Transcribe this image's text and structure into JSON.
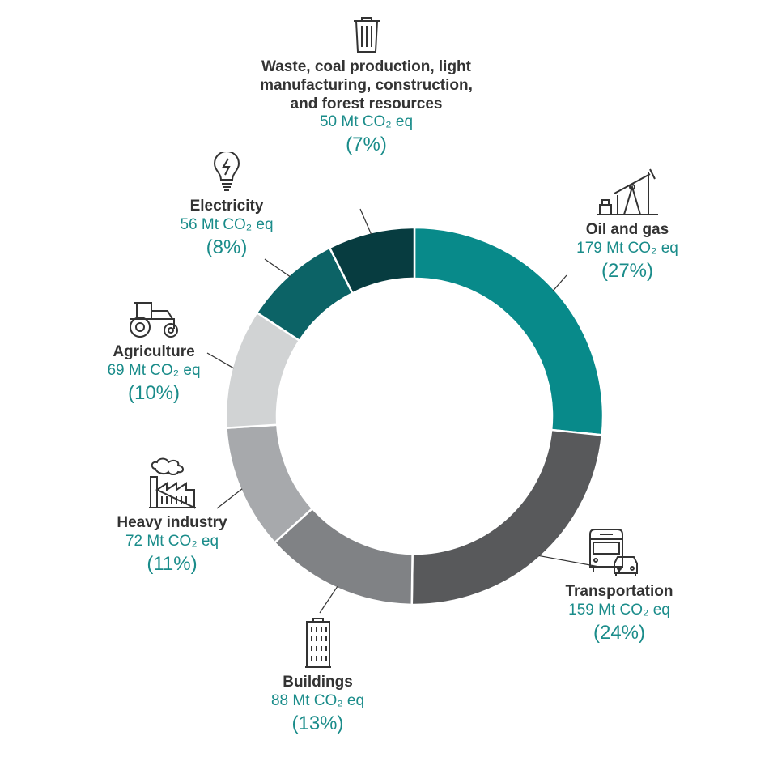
{
  "chart_data": {
    "type": "donut",
    "unit": "Mt CO₂ eq",
    "slices": [
      {
        "label": "Oil and gas",
        "value": 179,
        "value_text": "179 Mt CO₂ eq",
        "percent": 27,
        "percent_text": "(27%)",
        "color": "#088a8a",
        "icon": "oil-pump-icon"
      },
      {
        "label": "Transportation",
        "value": 159,
        "value_text": "159 Mt CO₂ eq",
        "percent": 24,
        "percent_text": "(24%)",
        "color": "#58595b",
        "icon": "bus-car-icon"
      },
      {
        "label": "Buildings",
        "value": 88,
        "value_text": "88 Mt CO₂ eq",
        "percent": 13,
        "percent_text": "(13%)",
        "color": "#808285",
        "icon": "building-icon"
      },
      {
        "label": "Heavy industry",
        "value": 72,
        "value_text": "72 Mt CO₂ eq",
        "percent": 11,
        "percent_text": "(11%)",
        "color": "#a7a9ac",
        "icon": "factory-icon"
      },
      {
        "label": "Agriculture",
        "value": 69,
        "value_text": "69 Mt CO₂ eq",
        "percent": 10,
        "percent_text": "(10%)",
        "color": "#d1d3d4",
        "icon": "tractor-icon"
      },
      {
        "label": "Electricity",
        "value": 56,
        "value_text": "56 Mt CO₂ eq",
        "percent": 8,
        "percent_text": "(8%)",
        "color": "#0c6366",
        "icon": "lightbulb-icon"
      },
      {
        "label": "Waste, coal production, light manufacturing, construction, and forest resources",
        "value": 50,
        "value_text": "50 Mt CO₂ eq",
        "percent": 7,
        "percent_text": "(7%)",
        "color": "#073c40",
        "icon": "trash-can-icon"
      }
    ]
  }
}
